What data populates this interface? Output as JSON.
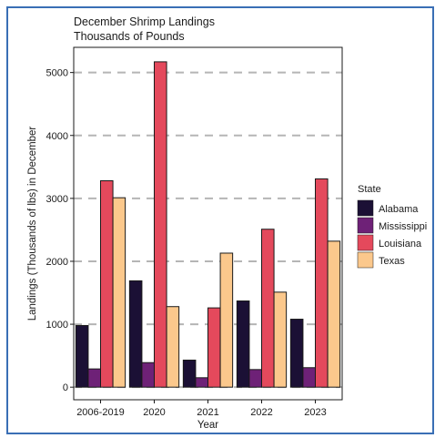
{
  "chart_data": {
    "type": "bar",
    "title": "December Shrimp Landings",
    "subtitle": "Thousands of Pounds",
    "xlabel": "Year",
    "ylabel": "Landings (Thousands of lbs) in December",
    "categories": [
      "2006-2019",
      "2020",
      "2021",
      "2022",
      "2023"
    ],
    "series": [
      {
        "name": "Alabama",
        "color": "#1b1035",
        "values": [
          980,
          1690,
          430,
          1370,
          1080
        ]
      },
      {
        "name": "Mississippi",
        "color": "#6e2177",
        "values": [
          290,
          390,
          150,
          280,
          310
        ]
      },
      {
        "name": "Louisiana",
        "color": "#e4495c",
        "values": [
          3280,
          5170,
          1260,
          2510,
          3310
        ]
      },
      {
        "name": "Texas",
        "color": "#fbc88c",
        "values": [
          3010,
          1280,
          2130,
          1510,
          2320
        ]
      }
    ],
    "ylim": [
      -200,
      5400
    ],
    "yticks": [
      0,
      1000,
      2000,
      3000,
      4000,
      5000
    ],
    "grid": "horizontal dashed",
    "legend": {
      "title": "State",
      "position": "right"
    }
  }
}
